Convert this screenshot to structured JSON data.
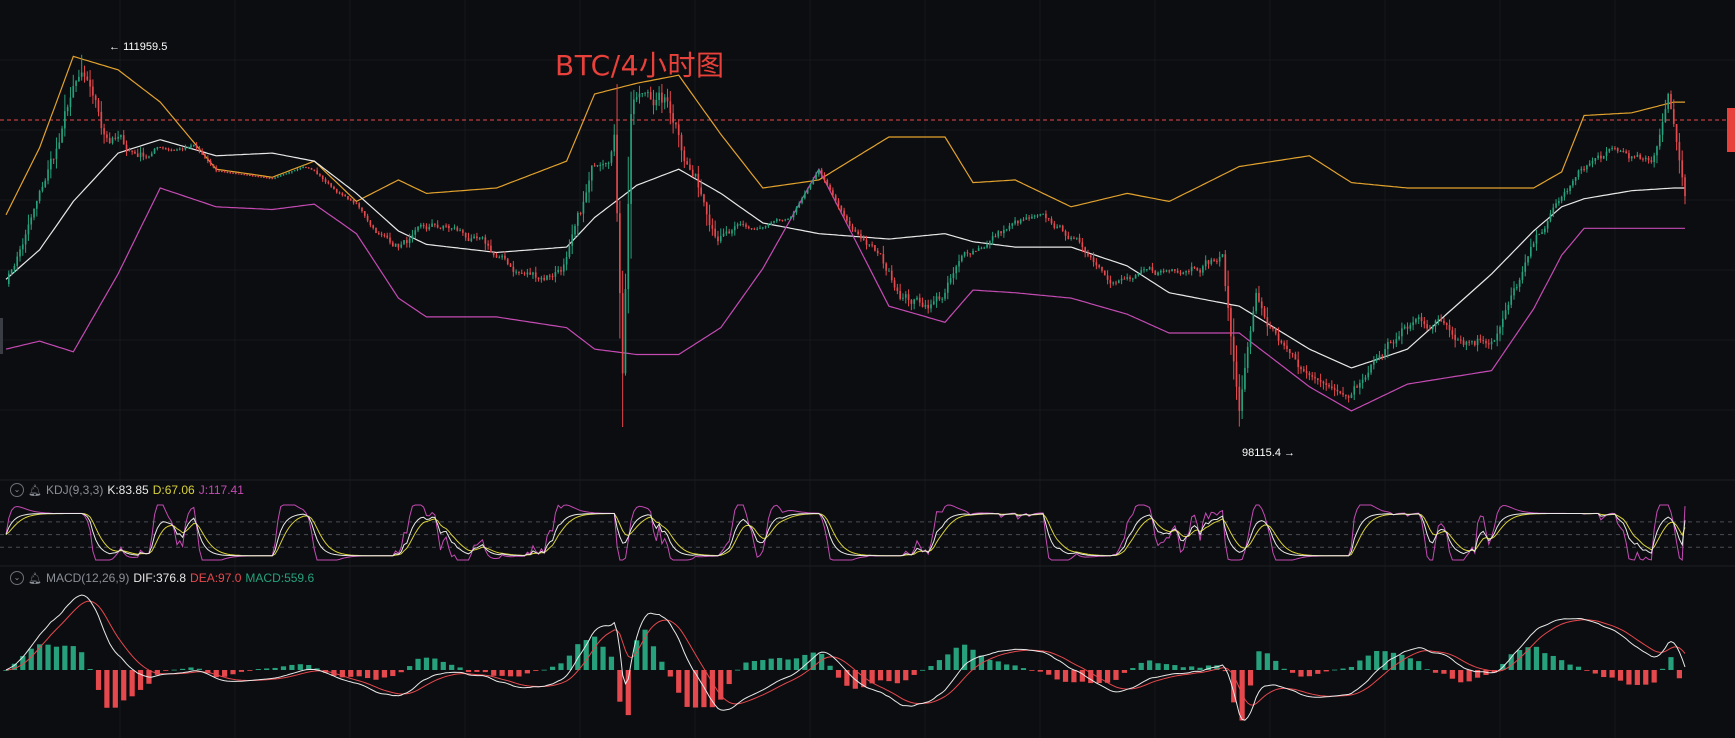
{
  "title": "BTC/4小时图",
  "colors": {
    "background": "#0c0d10",
    "up": "#26a17b",
    "down": "#e5484d",
    "boll_upper": "#e2a22e",
    "boll_mid": "#e8e8e8",
    "boll_lower": "#c44bb4",
    "k_line": "#e8e8e8",
    "d_line": "#d9d23a",
    "j_line": "#c44bb4",
    "dif_line": "#e8e8e8",
    "dea_line": "#e5484d",
    "title": "#e8403a",
    "grid": "#16181c"
  },
  "annotations": {
    "high_label": "111959.5",
    "low_label": "98115.4"
  },
  "kdj_legend": {
    "name": "KDJ(9,3,3)",
    "k": "K:83.85",
    "d": "D:67.06",
    "j": "J:117.41"
  },
  "macd_legend": {
    "name": "MACD(12,26,9)",
    "dif": "DIF:376.8",
    "dea": "DEA:97.0",
    "macd": "MACD:559.6"
  },
  "chart_data": {
    "type": "candlestick",
    "symbol": "BTC",
    "interval": "4h",
    "price_range": [
      96500,
      114000
    ],
    "high": 111959.5,
    "low": 98115.4,
    "current_price_level": 110600,
    "bollinger_keypoints": {
      "upper": [
        [
          0,
          106000
        ],
        [
          12,
          108500
        ],
        [
          24,
          111900
        ],
        [
          40,
          111400
        ],
        [
          55,
          110200
        ],
        [
          75,
          107700
        ],
        [
          95,
          107400
        ],
        [
          110,
          108000
        ],
        [
          125,
          106500
        ],
        [
          140,
          107300
        ],
        [
          150,
          106800
        ],
        [
          175,
          107000
        ],
        [
          200,
          108000
        ],
        [
          210,
          110500
        ],
        [
          225,
          110900
        ],
        [
          240,
          111200
        ],
        [
          255,
          109000
        ],
        [
          270,
          107000
        ],
        [
          290,
          107300
        ],
        [
          315,
          108900
        ],
        [
          335,
          108900
        ],
        [
          345,
          107200
        ],
        [
          360,
          107300
        ],
        [
          380,
          106300
        ],
        [
          400,
          106800
        ],
        [
          415,
          106500
        ],
        [
          440,
          107800
        ],
        [
          465,
          108200
        ],
        [
          480,
          107200
        ],
        [
          500,
          107000
        ],
        [
          530,
          107000
        ],
        [
          545,
          107000
        ],
        [
          555,
          107600
        ],
        [
          563,
          109700
        ],
        [
          580,
          109800
        ],
        [
          595,
          110200
        ]
      ],
      "middle": [
        [
          0,
          103600
        ],
        [
          12,
          104700
        ],
        [
          24,
          106500
        ],
        [
          40,
          108300
        ],
        [
          55,
          108800
        ],
        [
          75,
          108200
        ],
        [
          95,
          108300
        ],
        [
          110,
          108000
        ],
        [
          125,
          106800
        ],
        [
          140,
          105400
        ],
        [
          150,
          104900
        ],
        [
          175,
          104600
        ],
        [
          200,
          104800
        ],
        [
          210,
          105900
        ],
        [
          225,
          107100
        ],
        [
          240,
          107700
        ],
        [
          255,
          106800
        ],
        [
          270,
          105700
        ],
        [
          290,
          105300
        ],
        [
          315,
          105100
        ],
        [
          335,
          105300
        ],
        [
          345,
          105000
        ],
        [
          360,
          104800
        ],
        [
          380,
          104800
        ],
        [
          400,
          104100
        ],
        [
          415,
          103100
        ],
        [
          440,
          102600
        ],
        [
          465,
          101000
        ],
        [
          480,
          100300
        ],
        [
          500,
          101000
        ],
        [
          530,
          103800
        ],
        [
          545,
          105400
        ],
        [
          555,
          106300
        ],
        [
          563,
          106600
        ],
        [
          580,
          106900
        ],
        [
          595,
          107000
        ]
      ],
      "lower": [
        [
          0,
          101000
        ],
        [
          12,
          101300
        ],
        [
          24,
          100900
        ],
        [
          40,
          103800
        ],
        [
          55,
          107000
        ],
        [
          75,
          106300
        ],
        [
          95,
          106200
        ],
        [
          110,
          106400
        ],
        [
          125,
          105300
        ],
        [
          140,
          102900
        ],
        [
          150,
          102200
        ],
        [
          175,
          102200
        ],
        [
          200,
          101800
        ],
        [
          210,
          101000
        ],
        [
          225,
          100800
        ],
        [
          240,
          100800
        ],
        [
          255,
          101800
        ],
        [
          270,
          104000
        ],
        [
          290,
          107700
        ],
        [
          315,
          102600
        ],
        [
          335,
          102000
        ],
        [
          345,
          103200
        ],
        [
          360,
          103100
        ],
        [
          380,
          102900
        ],
        [
          400,
          102300
        ],
        [
          415,
          101600
        ],
        [
          440,
          101600
        ],
        [
          465,
          99600
        ],
        [
          480,
          98700
        ],
        [
          500,
          99700
        ],
        [
          530,
          100200
        ],
        [
          545,
          102500
        ],
        [
          555,
          104500
        ],
        [
          563,
          105500
        ],
        [
          580,
          105500
        ],
        [
          595,
          105500
        ]
      ]
    },
    "kdj": {
      "k": 83.85,
      "d": 67.06,
      "j": 117.41,
      "params": [
        9,
        3,
        3
      ]
    },
    "macd": {
      "dif": 376.8,
      "dea": 97.0,
      "macd": 559.6,
      "params": [
        12,
        26,
        9
      ]
    }
  }
}
